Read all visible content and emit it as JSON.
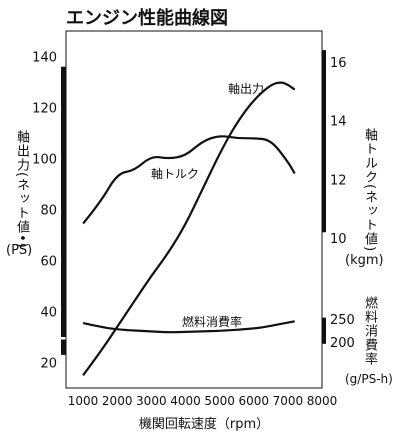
{
  "chart_data": {
    "type": "line",
    "title": "エンジン性能曲線図",
    "xlabel": "機関回転速度（rpm）",
    "x_ticks": [
      1000,
      2000,
      3000,
      4000,
      5000,
      6000,
      7000,
      8000
    ],
    "xlim": [
      500,
      8000
    ],
    "left_axis": {
      "label": "軸出力(ネット値•)",
      "unit": "(PS)",
      "ticks": [
        20,
        40,
        60,
        80,
        100,
        120,
        140
      ],
      "range": [
        10,
        150
      ]
    },
    "right_axes": [
      {
        "label": "軸トルク(ネット値)",
        "unit": "(kgm)",
        "ticks": [
          10,
          12,
          14,
          16
        ],
        "range": [
          4.9,
          17.05
        ]
      },
      {
        "label": "燃料消費率",
        "unit": "(g/PS-h)",
        "ticks": [
          200,
          250
        ],
        "range": [
          200,
          250
        ]
      }
    ],
    "series": [
      {
        "name": "軸出力",
        "axis": "left",
        "x": [
          1000,
          1500,
          2000,
          2500,
          3000,
          3500,
          4000,
          4500,
          5000,
          5500,
          6000,
          6500,
          6800,
          7000,
          7200
        ],
        "y": [
          15,
          24,
          34,
          44,
          54,
          63,
          74,
          88,
          102,
          114,
          123,
          129,
          130,
          129,
          127
        ]
      },
      {
        "name": "軸トルク",
        "axis": "right-1",
        "x": [
          1000,
          1500,
          2000,
          2500,
          3000,
          3500,
          4000,
          4500,
          5000,
          5500,
          6000,
          6500,
          7000,
          7200
        ],
        "y": [
          10.5,
          11.2,
          12.2,
          12.3,
          12.8,
          12.7,
          12.8,
          13.3,
          13.5,
          13.4,
          13.4,
          13.35,
          12.6,
          12.2
        ]
      },
      {
        "name": "燃料消費率",
        "axis": "right-2",
        "x": [
          1000,
          1500,
          2000,
          3000,
          3500,
          4000,
          5000,
          6000,
          6500,
          7200
        ],
        "y": [
          241,
          233,
          227,
          223,
          221,
          222,
          224,
          229,
          235,
          245
        ]
      }
    ]
  },
  "texts": {
    "title": "エンジン性能曲線図",
    "left_label": "軸出力(ネット値•)",
    "left_unit": "(PS)",
    "right_torque_label": "軸トルク(ネット値)",
    "right_torque_unit": "(kgm)",
    "right_fuel_label": "燃料消費率",
    "right_fuel_unit": "(g/PS-h)"
  },
  "colors": {
    "ink": "#111111",
    "paper": "#ffffff"
  }
}
